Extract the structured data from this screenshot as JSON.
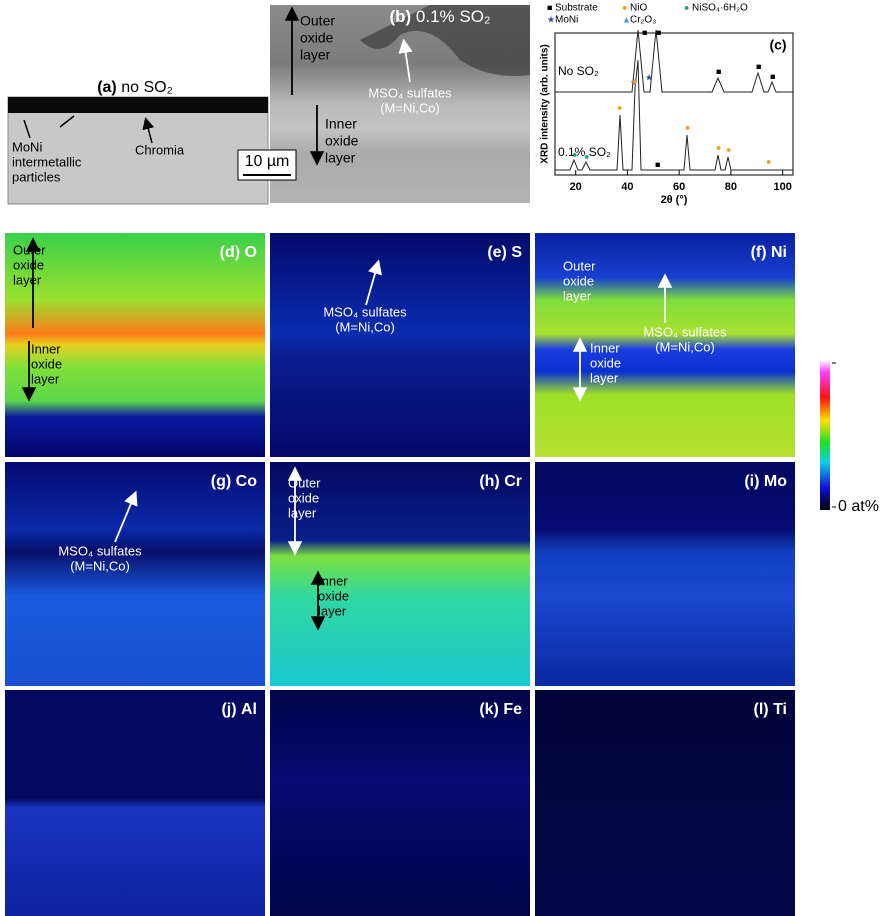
{
  "panels": {
    "a": {
      "tag": "(a)",
      "title": "no SO₂",
      "notes": [
        [
          "MoNi",
          "intermetallic",
          "particles"
        ],
        [
          "Chromia"
        ]
      ]
    },
    "b": {
      "tag": "(b)",
      "title": "0.1% SO₂",
      "notes": [
        [
          "Outer",
          "oxide",
          "layer"
        ],
        [
          "MSO₄ sulfates",
          "(M=Ni,Co)"
        ],
        [
          "Inner",
          "oxide",
          "layer"
        ]
      ],
      "scale_bar": "10 µm"
    },
    "c": {
      "tag": "(c)",
      "legend": [
        "Substrate",
        "NiO",
        "NiSO₄·6H₂O",
        "MoNi",
        "Cr₂O₃"
      ],
      "traces": [
        "No SO₂",
        "0.1% SO₂"
      ],
      "x_label": "2θ (°)",
      "y_label": "XRD intensity (arb. units)",
      "xlim": [
        12,
        104
      ],
      "xticks": [
        20,
        40,
        60,
        80,
        100
      ]
    }
  },
  "maps": [
    {
      "tag": "(d)",
      "element": "O",
      "notes": [
        [
          "Outer",
          "oxide",
          "layer"
        ],
        [
          "Inner",
          "oxide",
          "layer"
        ]
      ]
    },
    {
      "tag": "(e)",
      "element": "S",
      "notes": [
        [
          "MSO₄ sulfates",
          "(M=Ni,Co)"
        ]
      ]
    },
    {
      "tag": "(f)",
      "element": "Ni",
      "notes": [
        [
          "Outer",
          "oxide",
          "layer"
        ],
        [
          "Inner",
          "oxide",
          "layer"
        ],
        [
          "MSO₄ sulfates",
          "(M=Ni,Co)"
        ]
      ]
    },
    {
      "tag": "(g)",
      "element": "Co",
      "notes": [
        [
          "MSO₄ sulfates",
          "(M=Ni,Co)"
        ]
      ]
    },
    {
      "tag": "(h)",
      "element": "Cr",
      "notes": [
        [
          "Outer",
          "oxide",
          "layer"
        ],
        [
          "Inner",
          "oxide",
          "layer"
        ]
      ]
    },
    {
      "tag": "(i)",
      "element": "Mo"
    },
    {
      "tag": "(j)",
      "element": "Al"
    },
    {
      "tag": "(k)",
      "element": "Fe"
    },
    {
      "tag": "(l)",
      "element": "Ti"
    }
  ],
  "colorbar": {
    "label": "0 at%"
  }
}
